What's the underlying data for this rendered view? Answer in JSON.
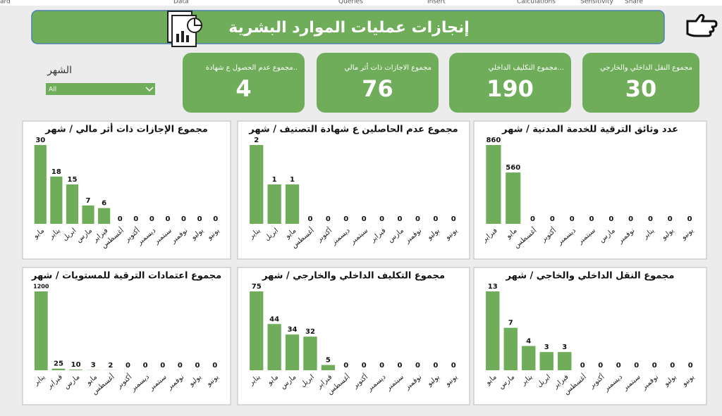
{
  "ribbon": [
    "ard",
    "Data",
    "Queries",
    "Insert",
    "Calculations",
    "Sensitivity",
    "Share"
  ],
  "header": {
    "title": "إنجازات عمليات الموارد البشرية"
  },
  "slicer": {
    "label": "الشهر",
    "selected": "All"
  },
  "kpis": [
    {
      "label": "مجموع النقل الداخلي والخارجي",
      "value": 30
    },
    {
      "label": "مجموع التكليف الداخلي...",
      "value": 190
    },
    {
      "label": "مجموع الاجازات ذات أثر مالي",
      "value": 76
    },
    {
      "label": "مجموع عدم الحصول ع شهادة..",
      "value": 4
    }
  ],
  "chart_data": [
    {
      "type": "bar",
      "title": "عدد وثائق الترقية للخدمة المدنية / شهر",
      "color": "#70ad5b",
      "categories": [
        "فبراير",
        "مايو",
        "أغسطس",
        "أكتوبر",
        "ديسمبر",
        "سبتمبر",
        "مارس",
        "نوفمبر",
        "يناير",
        "يوليو",
        "يونيو"
      ],
      "values": [
        860,
        560,
        0,
        0,
        0,
        0,
        0,
        0,
        0,
        0,
        0
      ]
    },
    {
      "type": "bar",
      "title": "مجموع عدم الحاصلين ع شهادة التصنيف / شهر",
      "color": "#70ad5b",
      "categories": [
        "يناير",
        "ابريل",
        "مايو",
        "أغسطس",
        "أكتوبر",
        "ديسمبر",
        "سبتمبر",
        "فبراير",
        "مارس",
        "نوفمبر",
        "يوليو",
        "يونيو"
      ],
      "values": [
        2,
        1,
        1,
        0,
        0,
        0,
        0,
        0,
        0,
        0,
        0,
        0
      ]
    },
    {
      "type": "bar",
      "title": "مجموع الإجازات ذات أثر مالي / شهر",
      "color": "#70ad5b",
      "categories": [
        "مايو",
        "يناير",
        "ابريل",
        "مارس",
        "فبراير",
        "أغسطس",
        "أكتوبر",
        "ديسمبر",
        "سبتمبر",
        "نوفمبر",
        "يوليو",
        "يونيو"
      ],
      "values": [
        30,
        18,
        15,
        7,
        6,
        0,
        0,
        0,
        0,
        0,
        0,
        0
      ]
    },
    {
      "type": "bar",
      "title": "مجموع النقل الداخلي والخاجي / شهر",
      "color": "#70ad5b",
      "categories": [
        "مايو",
        "مارس",
        "يناير",
        "ابريل",
        "فبراير",
        "أغسطس",
        "أكتوبر",
        "ديسمبر",
        "سبتمبر",
        "نوفمبر",
        "يوليو",
        "يونيو"
      ],
      "values": [
        13,
        7,
        4,
        3,
        3,
        0,
        0,
        0,
        0,
        0,
        0,
        0
      ]
    },
    {
      "type": "bar",
      "title": "مجموع التكليف الداخلي والخارجي / شهر",
      "color": "#70ad5b",
      "categories": [
        "يناير",
        "مايو",
        "مارس",
        "ابريل",
        "فبراير",
        "أغسطس",
        "أكتوبر",
        "ديسمبر",
        "سبتمبر",
        "نوفمبر",
        "يوليو",
        "يونيو"
      ],
      "values": [
        75,
        44,
        34,
        32,
        5,
        0,
        0,
        0,
        0,
        0,
        0,
        0
      ]
    },
    {
      "type": "bar",
      "title": "مجموع اعتمادات الترقية للمستويات / شهر",
      "color": "#70ad5b",
      "categories": [
        "يناير",
        "فبراير",
        "مارس",
        "مايو",
        "أغسطس",
        "أكتوبر",
        "ديسمبر",
        "سبتمبر",
        "نوفمبر",
        "يوليو",
        "يونيو"
      ],
      "values": [
        1200,
        25,
        10,
        3,
        2,
        0,
        0,
        0,
        0,
        0,
        0
      ]
    }
  ]
}
